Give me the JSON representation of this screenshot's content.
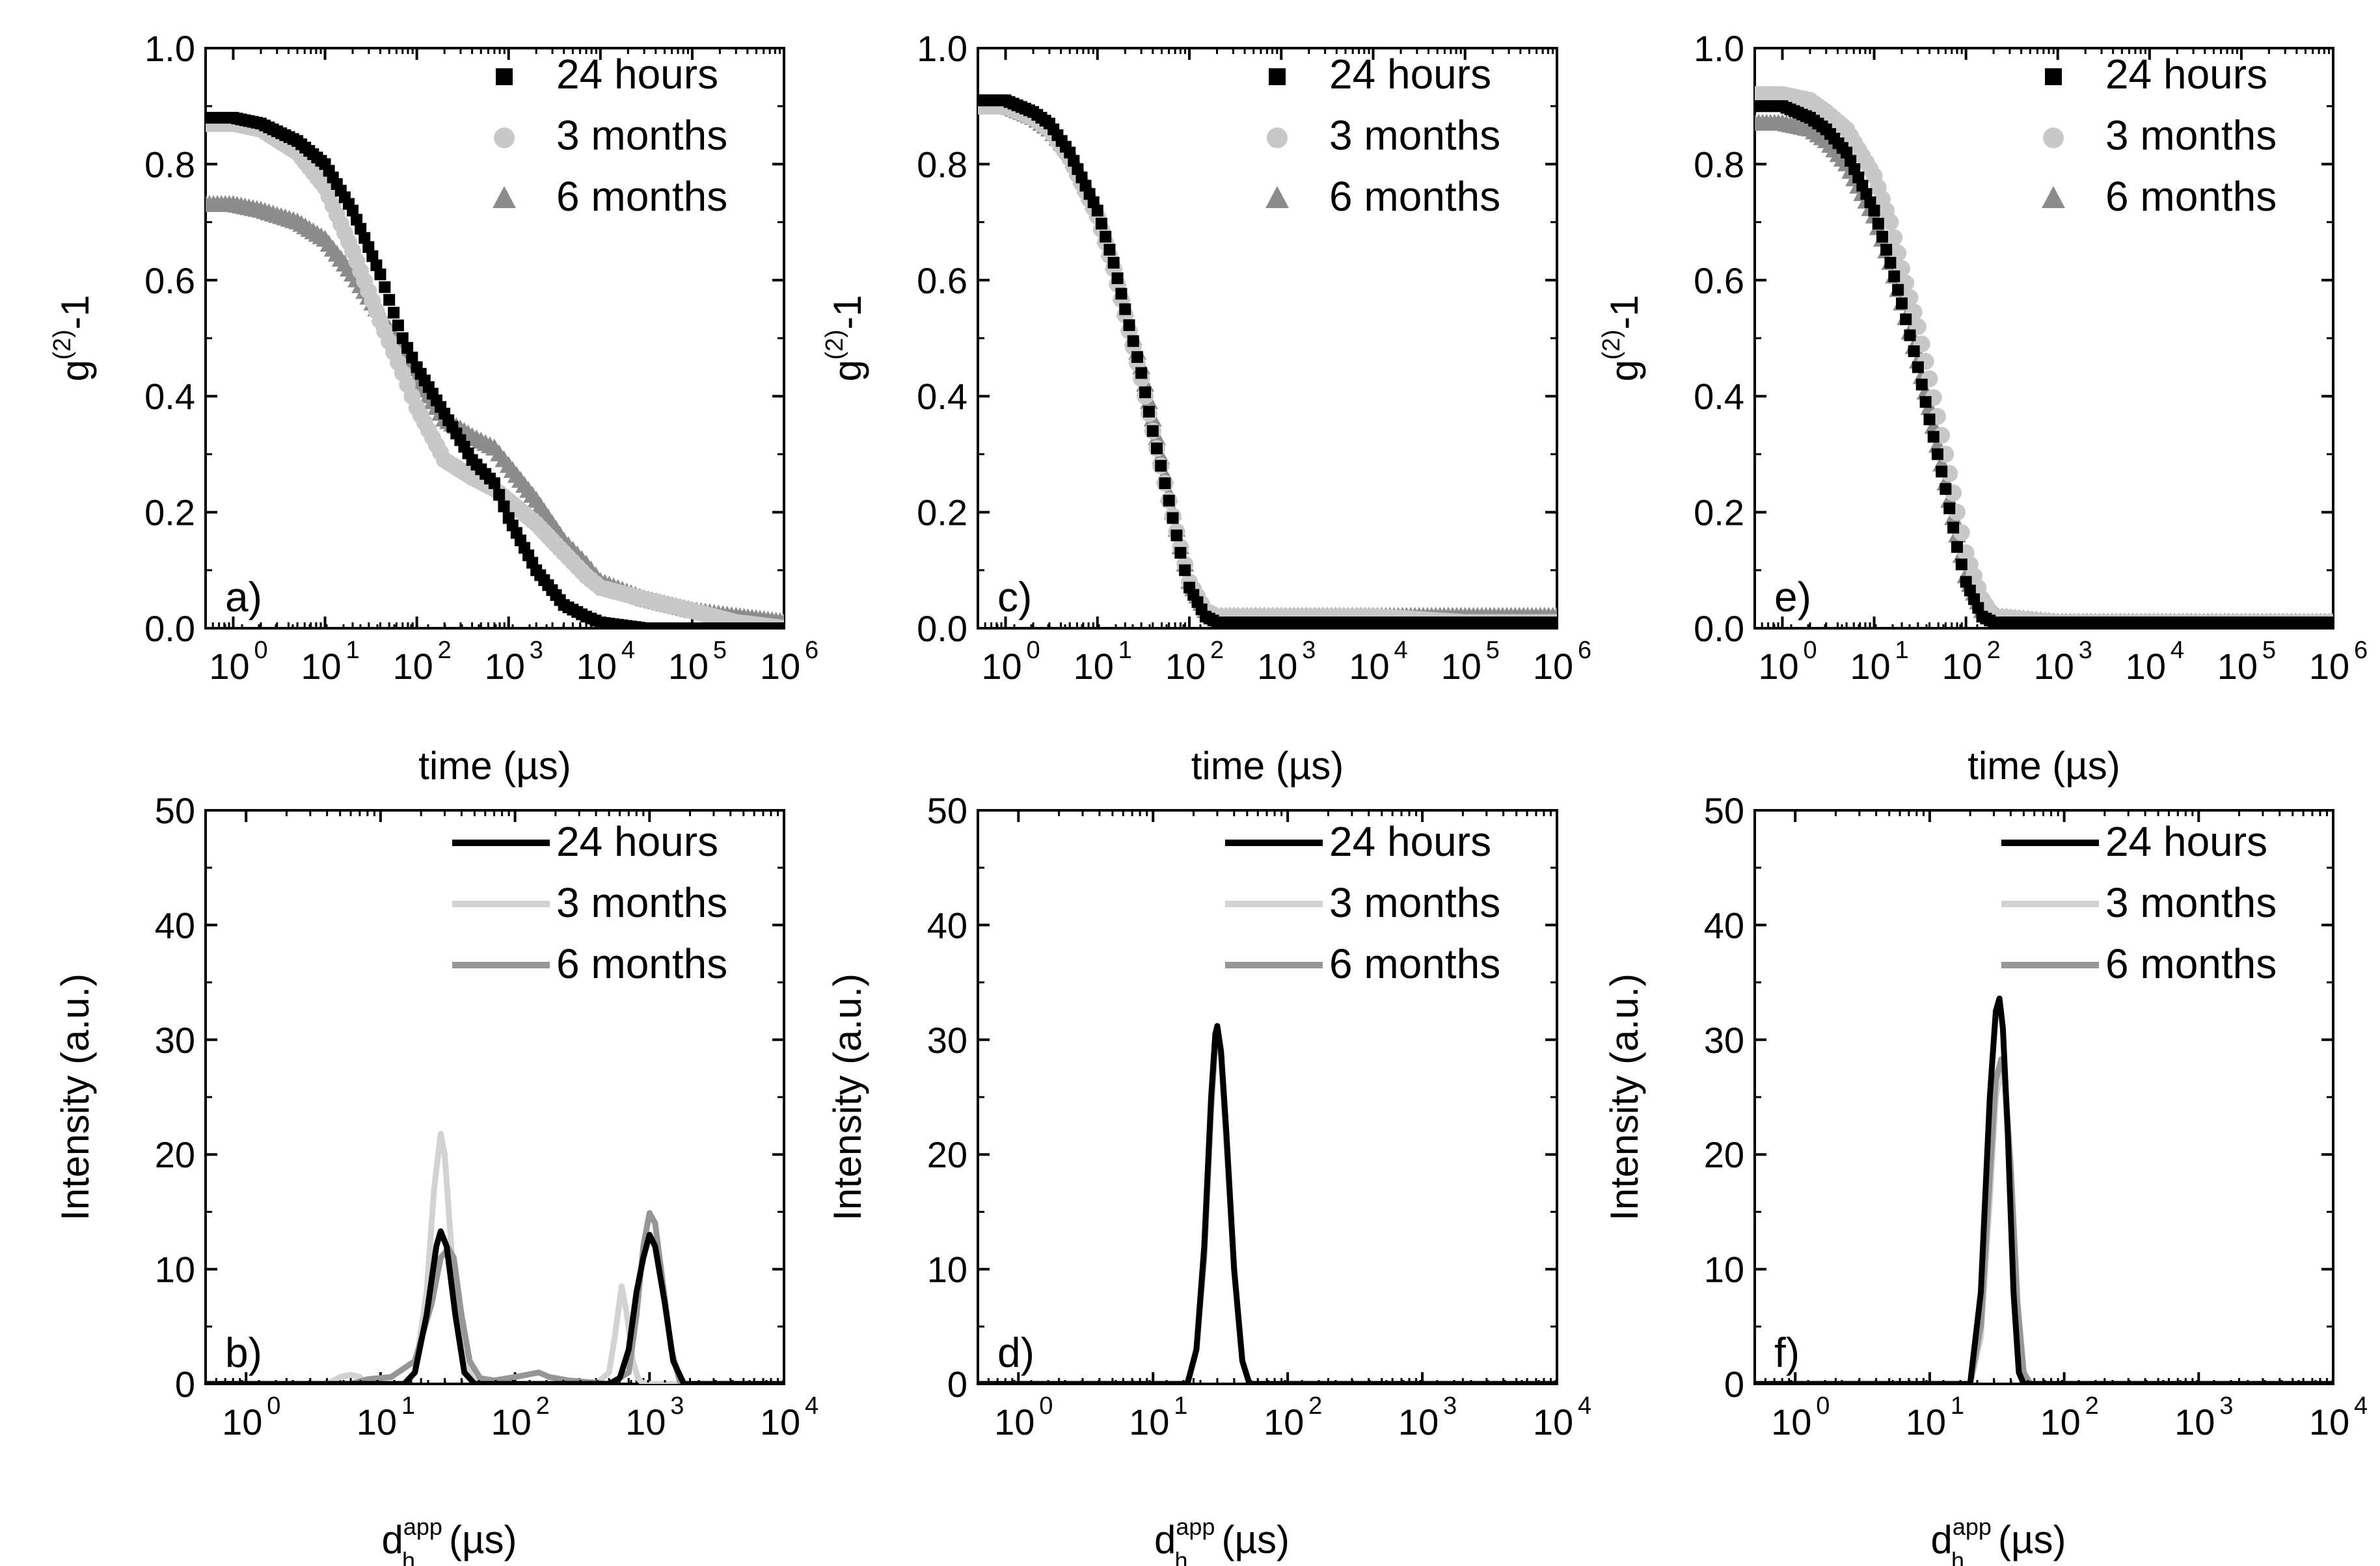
{
  "chart_data": [
    {
      "type": "scatter",
      "panel": "a)",
      "xscale": "log",
      "xlim": [
        0.5,
        1000000
      ],
      "ylim": [
        0,
        1.0
      ],
      "yticks": [
        "0.0",
        "0.2",
        "0.4",
        "0.6",
        "0.8",
        "1.0"
      ],
      "xtick_exponents": [
        "0",
        "1",
        "2",
        "3",
        "4",
        "5",
        "6"
      ],
      "xlabel": "time (µs)",
      "ylabel": "g(2)-1",
      "legend": [
        "24 hours",
        "3 months",
        "6 months"
      ],
      "series": [
        {
          "name": "24 hours",
          "marker": "square",
          "color": "#000000",
          "x": [
            0.5,
            1,
            2,
            5,
            10,
            20,
            40,
            70,
            100,
            200,
            400,
            700,
            1000,
            2000,
            4000,
            7000,
            10000,
            30000,
            100000,
            1000000
          ],
          "y": [
            0.88,
            0.88,
            0.87,
            0.84,
            0.8,
            0.72,
            0.61,
            0.5,
            0.45,
            0.37,
            0.29,
            0.25,
            0.19,
            0.1,
            0.04,
            0.02,
            0.01,
            0.0,
            0.0,
            0.0
          ]
        },
        {
          "name": "3 months",
          "marker": "circle",
          "color": "#c8c8c8",
          "x": [
            0.5,
            1,
            2,
            5,
            10,
            20,
            40,
            70,
            100,
            200,
            400,
            700,
            1000,
            2000,
            4000,
            7000,
            10000,
            30000,
            100000,
            300000,
            1000000
          ],
          "y": [
            0.87,
            0.87,
            0.86,
            0.82,
            0.76,
            0.65,
            0.53,
            0.44,
            0.38,
            0.29,
            0.26,
            0.24,
            0.22,
            0.18,
            0.13,
            0.09,
            0.07,
            0.05,
            0.03,
            0.01,
            0.0
          ]
        },
        {
          "name": "6 months",
          "marker": "triangle",
          "color": "#8c8c8c",
          "x": [
            0.5,
            1,
            2,
            5,
            10,
            20,
            40,
            70,
            100,
            200,
            400,
            700,
            1000,
            2000,
            4000,
            7000,
            10000,
            30000,
            100000,
            300000,
            1000000
          ],
          "y": [
            0.73,
            0.73,
            0.72,
            0.7,
            0.67,
            0.61,
            0.54,
            0.48,
            0.43,
            0.36,
            0.33,
            0.31,
            0.28,
            0.22,
            0.15,
            0.11,
            0.08,
            0.05,
            0.03,
            0.02,
            0.01
          ]
        }
      ]
    },
    {
      "type": "scatter",
      "panel": "c)",
      "xscale": "log",
      "xlim": [
        0.5,
        1000000
      ],
      "ylim": [
        0,
        1.0
      ],
      "yticks": [
        "0.0",
        "0.2",
        "0.4",
        "0.6",
        "0.8",
        "1.0"
      ],
      "xtick_exponents": [
        "0",
        "1",
        "2",
        "3",
        "4",
        "5",
        "6"
      ],
      "xlabel": "time (µs)",
      "ylabel": "g(2)-1",
      "legend": [
        "24 hours",
        "3 months",
        "6 months"
      ],
      "series": [
        {
          "name": "24 hours",
          "marker": "square",
          "color": "#000000",
          "x": [
            0.5,
            1,
            2,
            3,
            5,
            10,
            15,
            20,
            30,
            40,
            60,
            80,
            100,
            150,
            200,
            1000,
            10000,
            100000,
            1000000
          ],
          "y": [
            0.91,
            0.91,
            0.89,
            0.87,
            0.82,
            0.72,
            0.63,
            0.55,
            0.44,
            0.34,
            0.22,
            0.13,
            0.07,
            0.02,
            0.01,
            0.01,
            0.01,
            0.01,
            0.01
          ]
        },
        {
          "name": "3 months",
          "marker": "circle",
          "color": "#c8c8c8",
          "x": [
            0.5,
            1,
            2,
            3,
            5,
            10,
            15,
            20,
            30,
            40,
            60,
            80,
            100,
            150,
            200,
            1000,
            10000,
            100000,
            1000000
          ],
          "y": [
            0.9,
            0.9,
            0.88,
            0.86,
            0.81,
            0.71,
            0.62,
            0.54,
            0.43,
            0.34,
            0.22,
            0.14,
            0.08,
            0.03,
            0.02,
            0.02,
            0.02,
            0.01,
            0.01
          ]
        },
        {
          "name": "6 months",
          "marker": "triangle",
          "color": "#8c8c8c",
          "x": [
            0.5,
            1,
            2,
            3,
            5,
            10,
            15,
            20,
            30,
            40,
            60,
            80,
            100,
            150,
            200,
            1000,
            10000,
            100000,
            1000000
          ],
          "y": [
            0.9,
            0.9,
            0.88,
            0.86,
            0.82,
            0.72,
            0.63,
            0.55,
            0.45,
            0.36,
            0.23,
            0.14,
            0.08,
            0.03,
            0.02,
            0.02,
            0.02,
            0.02,
            0.02
          ]
        }
      ]
    },
    {
      "type": "scatter",
      "panel": "e)",
      "xscale": "log",
      "xlim": [
        0.5,
        1000000
      ],
      "ylim": [
        0,
        1.0
      ],
      "yticks": [
        "0.0",
        "0.2",
        "0.4",
        "0.6",
        "0.8",
        "1.0"
      ],
      "xtick_exponents": [
        "0",
        "1",
        "2",
        "3",
        "4",
        "5",
        "6"
      ],
      "xlabel": "time (µs)",
      "ylabel": "g(2)-1",
      "legend": [
        "24 hours",
        "3 months",
        "6 months"
      ],
      "series": [
        {
          "name": "24 hours",
          "marker": "square",
          "color": "#000000",
          "x": [
            0.5,
            1,
            2,
            3,
            5,
            10,
            15,
            20,
            30,
            40,
            60,
            80,
            100,
            150,
            200,
            1000,
            10000,
            100000,
            1000000
          ],
          "y": [
            0.9,
            0.9,
            0.88,
            0.86,
            0.82,
            0.72,
            0.63,
            0.56,
            0.45,
            0.36,
            0.24,
            0.14,
            0.08,
            0.02,
            0.01,
            0.01,
            0.01,
            0.01,
            0.01
          ]
        },
        {
          "name": "3 months",
          "marker": "circle",
          "color": "#c8c8c8",
          "x": [
            0.5,
            1,
            2,
            3,
            5,
            10,
            15,
            20,
            30,
            40,
            60,
            80,
            100,
            150,
            200,
            1000,
            10000,
            100000,
            1000000
          ],
          "y": [
            0.92,
            0.92,
            0.91,
            0.89,
            0.86,
            0.78,
            0.7,
            0.62,
            0.52,
            0.43,
            0.3,
            0.2,
            0.13,
            0.05,
            0.02,
            0.01,
            0.01,
            0.01,
            0.01
          ]
        },
        {
          "name": "6 months",
          "marker": "triangle",
          "color": "#8c8c8c",
          "x": [
            0.5,
            1,
            2,
            3,
            5,
            10,
            15,
            20,
            30,
            40,
            60,
            80,
            100,
            150,
            200,
            1000,
            10000,
            100000,
            1000000
          ],
          "y": [
            0.87,
            0.87,
            0.86,
            0.84,
            0.8,
            0.71,
            0.63,
            0.56,
            0.46,
            0.38,
            0.25,
            0.16,
            0.09,
            0.03,
            0.02,
            0.01,
            0.01,
            0.01,
            0.01
          ]
        }
      ]
    },
    {
      "type": "line",
      "panel": "b)",
      "xscale": "log",
      "xlim": [
        0.5,
        10000
      ],
      "ylim": [
        0,
        50
      ],
      "yticks": [
        "0",
        "10",
        "20",
        "30",
        "40",
        "50"
      ],
      "xtick_exponents": [
        "0",
        "1",
        "2",
        "3",
        "4"
      ],
      "xlabel": "d_h^app (µs)",
      "ylabel": "Intensity (a.u.)",
      "legend": [
        "24 hours",
        "3 months",
        "6 months"
      ],
      "series": [
        {
          "name": "24 hours",
          "color": "#000000",
          "x": [
            0.5,
            15,
            18,
            22,
            26,
            28,
            31,
            36,
            42,
            50,
            100,
            500,
            600,
            700,
            800,
            900,
            1000,
            1100,
            1300,
            1500,
            1800,
            10000
          ],
          "y": [
            0,
            0,
            1,
            6,
            12,
            13.3,
            12,
            6,
            1,
            0,
            0,
            0,
            0.5,
            3,
            8,
            11,
            13,
            12,
            7,
            2,
            0,
            0
          ]
        },
        {
          "name": "3 months",
          "color": "#d2d2d2",
          "x": [
            0.5,
            4,
            5,
            6,
            7,
            8,
            15,
            18,
            22,
            25,
            28,
            30,
            34,
            40,
            48,
            55,
            100,
            400,
            500,
            550,
            620,
            680,
            750,
            820,
            900,
            10000
          ],
          "y": [
            0,
            0,
            0.6,
            0.8,
            0.6,
            0,
            0,
            1,
            8,
            17,
            21.8,
            20,
            11,
            3,
            0.5,
            0,
            0,
            0,
            1,
            4,
            8.5,
            6,
            2,
            0.5,
            0,
            0
          ]
        },
        {
          "name": "6 months",
          "color": "#969696",
          "x": [
            0.5,
            6,
            8,
            12,
            18,
            24,
            28,
            32,
            35,
            40,
            46,
            55,
            70,
            100,
            150,
            180,
            250,
            500,
            700,
            800,
            900,
            1000,
            1100,
            1250,
            1450,
            1700,
            10000
          ],
          "y": [
            0,
            0,
            0.4,
            0.6,
            2,
            7,
            11,
            11.8,
            11,
            6,
            2,
            0.5,
            0.3,
            0.6,
            1.0,
            0.6,
            0.3,
            0,
            1,
            6,
            12,
            14.9,
            14,
            9,
            3,
            0,
            0
          ]
        }
      ]
    },
    {
      "type": "line",
      "panel": "d)",
      "xscale": "log",
      "xlim": [
        0.5,
        10000
      ],
      "ylim": [
        0,
        50
      ],
      "yticks": [
        "0",
        "10",
        "20",
        "30",
        "40",
        "50"
      ],
      "xtick_exponents": [
        "0",
        "1",
        "2",
        "3",
        "4"
      ],
      "xlabel": "d_h^app (µs)",
      "ylabel": "Intensity (a.u.)",
      "legend": [
        "24 hours",
        "3 months",
        "6 months"
      ],
      "series": [
        {
          "name": "24 hours",
          "color": "#000000",
          "x": [
            0.5,
            18,
            21,
            24,
            27,
            29,
            30,
            32,
            35,
            40,
            46,
            52,
            10000
          ],
          "y": [
            0,
            0,
            3,
            12,
            25,
            30.5,
            31.2,
            29,
            22,
            10,
            2,
            0,
            0
          ]
        },
        {
          "name": "3 months",
          "color": "#d2d2d2",
          "x": [
            0.5,
            18,
            21,
            24,
            27,
            29,
            30,
            32,
            35,
            40,
            46,
            52,
            10000
          ],
          "y": [
            0,
            0,
            3,
            11,
            24,
            29.5,
            30.3,
            28.5,
            21,
            10,
            2,
            0,
            0
          ]
        },
        {
          "name": "6 months",
          "color": "#969696",
          "x": [
            0.5,
            18,
            21,
            24,
            27,
            29,
            30,
            32,
            35,
            40,
            46,
            52,
            10000
          ],
          "y": [
            0,
            0,
            3,
            11,
            24,
            29.8,
            30.7,
            28.8,
            21.5,
            10,
            2,
            0,
            0
          ]
        }
      ]
    },
    {
      "type": "line",
      "panel": "f)",
      "xscale": "log",
      "xlim": [
        0.5,
        10000
      ],
      "ylim": [
        0,
        50
      ],
      "yticks": [
        "0",
        "10",
        "20",
        "30",
        "40",
        "50"
      ],
      "xtick_exponents": [
        "0",
        "1",
        "2",
        "3",
        "4"
      ],
      "xlabel": "d_h^app (µs)",
      "ylabel": "Intensity (a.u.)",
      "legend": [
        "24 hours",
        "3 months",
        "6 months"
      ],
      "series": [
        {
          "name": "24 hours",
          "color": "#000000",
          "x": [
            0.5,
            20,
            24,
            28,
            31,
            33,
            35,
            38,
            42,
            46,
            50,
            10000
          ],
          "y": [
            0,
            0,
            8,
            25,
            32.5,
            33.6,
            31,
            22,
            8,
            1,
            0,
            0
          ]
        },
        {
          "name": "3 months",
          "color": "#d2d2d2",
          "x": [
            0.5,
            20,
            24,
            28,
            31,
            34,
            36,
            40,
            45,
            50,
            56,
            10000
          ],
          "y": [
            0,
            0,
            4,
            16,
            25,
            27.4,
            26,
            18,
            6,
            1,
            0,
            0
          ]
        },
        {
          "name": "6 months",
          "color": "#969696",
          "x": [
            0.5,
            20,
            24,
            28,
            31,
            34,
            36,
            40,
            45,
            50,
            56,
            10000
          ],
          "y": [
            0,
            0,
            5,
            18,
            26.5,
            28.3,
            27,
            19,
            7,
            1,
            0,
            0
          ]
        }
      ]
    }
  ]
}
